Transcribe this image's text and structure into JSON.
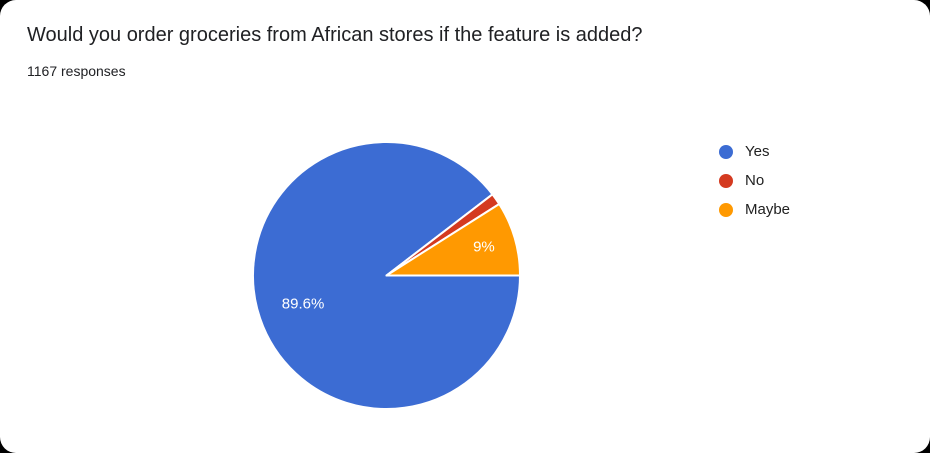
{
  "card": {
    "title": "Would you order groceries from African stores if the feature is added?",
    "responses_label": "1167 responses",
    "response_count": 1167
  },
  "chart_data": {
    "type": "pie",
    "title": "Would you order groceries from African stores if the feature is added?",
    "subtitle": "1167 responses",
    "categories": [
      "Yes",
      "No",
      "Maybe"
    ],
    "values": [
      89.6,
      1.4,
      9
    ],
    "unit": "percent",
    "slice_labels": [
      "89.6%",
      "",
      "9%"
    ],
    "colors": [
      "#3C6CD3",
      "#D43A20",
      "#FF9901"
    ],
    "slice_border_color": "#ffffff",
    "label_color": "#ffffff",
    "legend_position": "right",
    "start_angle_deg": 0,
    "direction": "clockwise",
    "total_responses": 1167
  },
  "legend": {
    "items": [
      {
        "label": "Yes",
        "color": "#3C6CD3"
      },
      {
        "label": "No",
        "color": "#D43A20"
      },
      {
        "label": "Maybe",
        "color": "#FF9901"
      }
    ]
  }
}
